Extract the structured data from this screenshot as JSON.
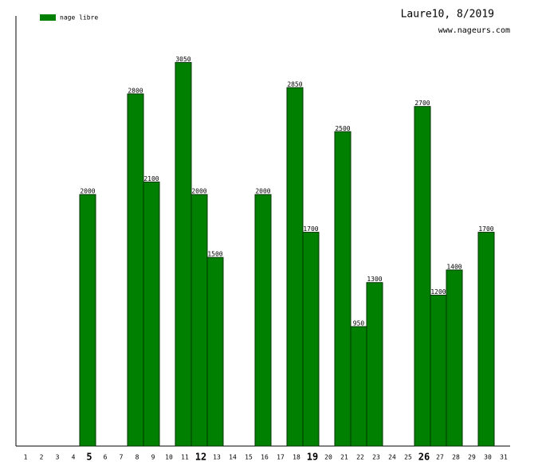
{
  "chart_data": {
    "type": "bar",
    "title": "Laure10, 8/2019",
    "subtitle": "www.nageurs.com",
    "categories": [
      "1",
      "2",
      "3",
      "4",
      "5",
      "6",
      "7",
      "8",
      "9",
      "10",
      "11",
      "12",
      "13",
      "14",
      "15",
      "16",
      "17",
      "18",
      "19",
      "20",
      "21",
      "22",
      "23",
      "24",
      "25",
      "26",
      "27",
      "28",
      "29",
      "30",
      "31"
    ],
    "series": [
      {
        "name": "nage libre",
        "color": "#008000",
        "values": [
          null,
          null,
          null,
          null,
          2000,
          null,
          null,
          2800,
          2100,
          null,
          3050,
          2000,
          1500,
          null,
          null,
          2000,
          null,
          2850,
          1700,
          null,
          2500,
          950,
          1300,
          null,
          null,
          2700,
          1200,
          1400,
          null,
          1700,
          null
        ]
      }
    ],
    "bold_categories": [
      "5",
      "12",
      "19",
      "26"
    ],
    "ylim": [
      0,
      3420
    ],
    "legend": "top-left"
  }
}
